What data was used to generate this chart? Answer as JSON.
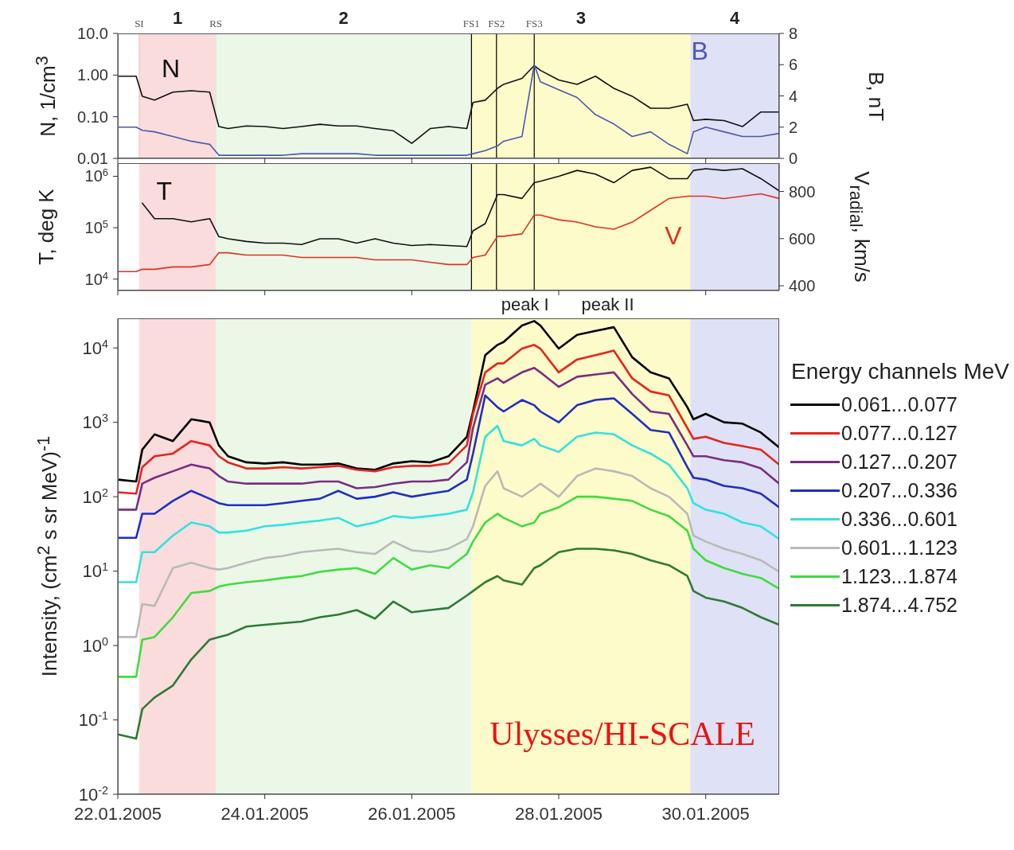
{
  "chart_data": [
    {
      "type": "line",
      "ylabel": "N, 1/cm$^{3}$",
      "y2label": "B, nT",
      "log": "y",
      "tick_labels": "y",
      "x": [
        "2005-01-22T00:00",
        "2005-01-22T06:00",
        "2005-01-22T08:00",
        "2005-01-22T12:00",
        "2005-01-22T18:00",
        "2005-01-23T00:00",
        "2005-01-23T06:00",
        "2005-01-23T09:00",
        "2005-01-23T12:00",
        "2005-01-23T18:00",
        "2005-01-24T00:00",
        "2005-01-24T06:00",
        "2005-01-24T12:00",
        "2005-01-24T18:00",
        "2005-01-25T00:00",
        "2005-01-25T06:00",
        "2005-01-25T12:00",
        "2005-01-25T18:00",
        "2005-01-26T00:00",
        "2005-01-26T06:00",
        "2005-01-26T12:00",
        "2005-01-26T18:00",
        "2005-01-26T20:00",
        "2005-01-27T00:00",
        "2005-01-27T04:00",
        "2005-01-27T06:00",
        "2005-01-27T12:00",
        "2005-01-27T16:00",
        "2005-01-27T18:00",
        "2005-01-28T00:00",
        "2005-01-28T06:00",
        "2005-01-28T12:00",
        "2005-01-28T18:00",
        "2005-01-29T00:00",
        "2005-01-29T06:00",
        "2005-01-29T12:00",
        "2005-01-29T18:00",
        "2005-01-29T20:00",
        "2005-01-30T00:00",
        "2005-01-30T06:00",
        "2005-01-30T12:00",
        "2005-01-30T18:00",
        "2005-01-31T00:00"
      ],
      "xlim": [
        "2005-01-22",
        "2005-01-31"
      ],
      "xticks": [
        {
          "value": "2005-01-22",
          "label": null
        },
        {
          "value": "2005-01-24",
          "label": null
        },
        {
          "value": "2005-01-26",
          "label": null
        },
        {
          "value": "2005-01-28",
          "label": null
        },
        {
          "value": "2005-01-30",
          "label": null
        }
      ],
      "ylim": [
        0.01,
        10
      ],
      "yticks": [
        {
          "value": 0.01,
          "label": "0.01"
        },
        {
          "value": 0.1,
          "label": "0.10"
        },
        {
          "value": 1,
          "label": "1.00"
        },
        {
          "value": 10,
          "label": "10.0"
        }
      ],
      "y2lim": [
        0,
        8
      ],
      "y2ticks": [
        0,
        2,
        4,
        6,
        8
      ],
      "bands": [
        {
          "axis": "x",
          "from": "2005-01-22T07:00",
          "to": "2005-01-23T08:00",
          "label": "1",
          "color": "#fadcdc"
        },
        {
          "axis": "x",
          "from": "2005-01-23T08:00",
          "to": "2005-01-26T19:30",
          "label": "2",
          "color": "#ebf8e8"
        },
        {
          "axis": "x",
          "from": "2005-01-26T19:30",
          "to": "2005-01-29T19:00",
          "label": "3",
          "color": "#fdfbca"
        },
        {
          "axis": "x",
          "from": "2005-01-29T19:00",
          "to": "2005-01-31T00:00",
          "label": "4",
          "color": "#dfe1f6"
        }
      ],
      "ref_lines": [
        {
          "axis": "x",
          "value": "2005-01-22T07:00",
          "label": "SI",
          "color": "#f2c4c4"
        },
        {
          "axis": "x",
          "value": "2005-01-23T08:00",
          "label": "RS",
          "color": "#d9e9d4"
        },
        {
          "axis": "x",
          "value": "2005-01-26T19:30",
          "label": "FS1",
          "color": "#000000"
        },
        {
          "axis": "x",
          "value": "2005-01-27T03:40",
          "label": "FS2",
          "color": "#000000"
        },
        {
          "axis": "x",
          "value": "2005-01-27T16:00",
          "label": "FS3",
          "color": "#000000"
        }
      ],
      "series": [
        {
          "name": "N",
          "color": "#111111",
          "values": [
            0.94,
            0.94,
            0.31,
            0.25,
            0.39,
            0.42,
            0.39,
            0.058,
            0.052,
            0.06,
            0.058,
            0.052,
            0.058,
            0.066,
            0.06,
            0.06,
            0.052,
            0.046,
            0.023,
            0.052,
            0.058,
            0.052,
            0.22,
            0.25,
            0.48,
            0.6,
            0.83,
            1.7,
            1.3,
            0.76,
            0.6,
            0.94,
            0.48,
            0.31,
            0.16,
            0.16,
            0.2,
            0.081,
            0.087,
            0.081,
            0.058,
            0.13,
            0.13
          ]
        },
        {
          "name": "B",
          "color": "#4b57b0",
          "axis": "y2",
          "values": [
            2.0,
            2.0,
            1.8,
            1.7,
            1.4,
            1.1,
            0.9,
            0.2,
            0.2,
            0.2,
            0.2,
            0.2,
            0.3,
            0.3,
            0.3,
            0.3,
            0.2,
            0.2,
            0.2,
            0.2,
            0.2,
            0.2,
            0.3,
            0.5,
            0.8,
            1.1,
            1.4,
            6.0,
            4.9,
            4.4,
            3.9,
            2.8,
            2.2,
            1.4,
            1.7,
            0.9,
            0.3,
            1.7,
            2.0,
            1.7,
            1.4,
            1.4,
            1.6
          ]
        }
      ]
    },
    {
      "type": "line",
      "ylabel": "T, deg K",
      "y2label": "V$_{radial}$, km/s",
      "log": "y",
      "tick_labels": "y",
      "x": [
        "2005-01-22T00:00",
        "2005-01-22T06:00",
        "2005-01-22T08:00",
        "2005-01-22T12:00",
        "2005-01-22T18:00",
        "2005-01-23T00:00",
        "2005-01-23T06:00",
        "2005-01-23T09:00",
        "2005-01-23T12:00",
        "2005-01-23T18:00",
        "2005-01-24T00:00",
        "2005-01-24T06:00",
        "2005-01-24T12:00",
        "2005-01-24T18:00",
        "2005-01-25T00:00",
        "2005-01-25T06:00",
        "2005-01-25T12:00",
        "2005-01-25T18:00",
        "2005-01-26T00:00",
        "2005-01-26T06:00",
        "2005-01-26T12:00",
        "2005-01-26T18:00",
        "2005-01-26T20:00",
        "2005-01-27T00:00",
        "2005-01-27T04:00",
        "2005-01-27T06:00",
        "2005-01-27T12:00",
        "2005-01-27T16:00",
        "2005-01-27T18:00",
        "2005-01-28T00:00",
        "2005-01-28T06:00",
        "2005-01-28T12:00",
        "2005-01-28T18:00",
        "2005-01-29T00:00",
        "2005-01-29T06:00",
        "2005-01-29T12:00",
        "2005-01-29T18:00",
        "2005-01-29T20:00",
        "2005-01-30T00:00",
        "2005-01-30T06:00",
        "2005-01-30T12:00",
        "2005-01-30T18:00",
        "2005-01-31T00:00"
      ],
      "xlim": [
        "2005-01-22",
        "2005-01-31"
      ],
      "xticks": [
        {
          "value": "2005-01-22",
          "label": null
        },
        {
          "value": "2005-01-24",
          "label": null
        },
        {
          "value": "2005-01-26",
          "label": null
        },
        {
          "value": "2005-01-28",
          "label": null
        },
        {
          "value": "2005-01-30",
          "label": null
        }
      ],
      "ylim": [
        6000,
        1800000
      ],
      "yticks": [
        {
          "value": 10000,
          "label": "10$^{4}$"
        },
        {
          "value": 100000,
          "label": "10$^{5}$"
        },
        {
          "value": 1000000,
          "label": "10$^{6}$"
        }
      ],
      "y2lim": [
        380,
        920
      ],
      "y2ticks": [
        400,
        600,
        800
      ],
      "bands": [
        {
          "axis": "x",
          "from": "2005-01-22T07:00",
          "to": "2005-01-23T08:00",
          "color": "#fadcdc"
        },
        {
          "axis": "x",
          "from": "2005-01-23T08:00",
          "to": "2005-01-26T19:30",
          "color": "#ebf8e8"
        },
        {
          "axis": "x",
          "from": "2005-01-26T19:30",
          "to": "2005-01-29T19:00",
          "color": "#fdfbca"
        },
        {
          "axis": "x",
          "from": "2005-01-29T19:00",
          "to": "2005-01-31T00:00",
          "color": "#dfe1f6"
        }
      ],
      "ref_lines": [
        {
          "axis": "x",
          "value": "2005-01-26T19:30",
          "color": "#000000"
        },
        {
          "axis": "x",
          "value": "2005-01-27T03:40",
          "color": "#000000"
        },
        {
          "axis": "x",
          "value": "2005-01-27T16:00",
          "color": "#000000"
        }
      ],
      "series": [
        {
          "name": "T",
          "color": "#111111",
          "values": [
            null,
            null,
            300000,
            150000,
            150000,
            130000,
            150000,
            67000,
            61000,
            54000,
            50000,
            50000,
            47000,
            61000,
            61000,
            50000,
            61000,
            50000,
            45000,
            47000,
            45000,
            43000,
            87000,
            120000,
            440000,
            440000,
            370000,
            750000,
            800000,
            1000000,
            1300000,
            1100000,
            750000,
            1300000,
            1500000,
            900000,
            900000,
            1300000,
            1400000,
            1300000,
            1400000,
            900000,
            520000
          ]
        },
        {
          "name": "V",
          "color": "#e0321f",
          "axis": "y2",
          "values": [
            460,
            460,
            470,
            470,
            480,
            480,
            490,
            540,
            540,
            530,
            530,
            530,
            520,
            520,
            520,
            520,
            510,
            510,
            510,
            500,
            490,
            490,
            520,
            530,
            610,
            610,
            620,
            700,
            700,
            680,
            670,
            650,
            640,
            670,
            720,
            770,
            780,
            780,
            780,
            770,
            780,
            790,
            770
          ]
        }
      ]
    },
    {
      "type": "line",
      "ylabel": "Intensity, (cm$^{2}$ s sr MeV)$^{-1}$",
      "log": "y",
      "legend": "right",
      "legend_title": "Energy channels MeV",
      "x": [
        "2005-01-22T00:00",
        "2005-01-22T06:00",
        "2005-01-22T08:00",
        "2005-01-22T12:00",
        "2005-01-22T18:00",
        "2005-01-23T00:00",
        "2005-01-23T06:00",
        "2005-01-23T09:00",
        "2005-01-23T12:00",
        "2005-01-23T18:00",
        "2005-01-24T00:00",
        "2005-01-24T06:00",
        "2005-01-24T12:00",
        "2005-01-24T18:00",
        "2005-01-25T00:00",
        "2005-01-25T06:00",
        "2005-01-25T12:00",
        "2005-01-25T18:00",
        "2005-01-26T00:00",
        "2005-01-26T06:00",
        "2005-01-26T12:00",
        "2005-01-26T18:00",
        "2005-01-26T20:00",
        "2005-01-27T00:00",
        "2005-01-27T04:00",
        "2005-01-27T06:00",
        "2005-01-27T12:00",
        "2005-01-27T16:00",
        "2005-01-27T18:00",
        "2005-01-28T00:00",
        "2005-01-28T06:00",
        "2005-01-28T12:00",
        "2005-01-28T18:00",
        "2005-01-29T00:00",
        "2005-01-29T06:00",
        "2005-01-29T12:00",
        "2005-01-29T18:00",
        "2005-01-29T20:00",
        "2005-01-30T00:00",
        "2005-01-30T06:00",
        "2005-01-30T12:00",
        "2005-01-30T18:00",
        "2005-01-31T00:00"
      ],
      "xlim": [
        "2005-01-22",
        "2005-01-31"
      ],
      "xticks": [
        {
          "value": "2005-01-22",
          "label": "22.01.2005"
        },
        {
          "value": "2005-01-24",
          "label": "24.01.2005"
        },
        {
          "value": "2005-01-26",
          "label": "26.01.2005"
        },
        {
          "value": "2005-01-28",
          "label": "28.01.2005"
        },
        {
          "value": "2005-01-30",
          "label": "30.01.2005"
        }
      ],
      "ylim": [
        0.01,
        25000
      ],
      "yticks": [
        {
          "value": 0.01,
          "label": "10$^{-2}$"
        },
        {
          "value": 0.1,
          "label": "10$^{-1}$"
        },
        {
          "value": 1,
          "label": "10$^{0}$"
        },
        {
          "value": 10,
          "label": "10$^{1}$"
        },
        {
          "value": 100,
          "label": "10$^{2}$"
        },
        {
          "value": 1000,
          "label": "10$^{3}$"
        },
        {
          "value": 10000,
          "label": "10$^{4}$"
        }
      ],
      "bands": [
        {
          "axis": "x",
          "from": "2005-01-22T07:00",
          "to": "2005-01-23T08:00",
          "color": "#fadcdc"
        },
        {
          "axis": "x",
          "from": "2005-01-23T08:00",
          "to": "2005-01-26T19:30",
          "color": "#ebf8e8"
        },
        {
          "axis": "x",
          "from": "2005-01-26T19:30",
          "to": "2005-01-29T19:00",
          "color": "#fdfbca"
        },
        {
          "axis": "x",
          "from": "2005-01-29T19:00",
          "to": "2005-01-31T00:00",
          "color": "#dfe1f6"
        }
      ],
      "annotations": [
        {
          "text": "peak I",
          "x": "2005-01-27T13:00",
          "y": 25000
        },
        {
          "text": "peak II",
          "x": "2005-01-28T16:00",
          "y": 25000
        },
        "Ulysses/HI-SCALE"
      ],
      "series": [
        {
          "name": "0.061...0.077",
          "color": "#000000",
          "values": [
            170,
            160,
            430,
            690,
            560,
            1100,
            1000,
            490,
            350,
            290,
            280,
            290,
            270,
            270,
            280,
            240,
            230,
            280,
            300,
            290,
            350,
            640,
            1400,
            8000,
            11000,
            12000,
            20000,
            23000,
            20000,
            9800,
            15000,
            17000,
            19000,
            7500,
            4700,
            3900,
            1600,
            1100,
            1300,
            1000,
            960,
            730,
            460
          ]
        },
        {
          "name": "0.077...0.127",
          "color": "#e8231e",
          "values": [
            115,
            110,
            250,
            350,
            380,
            560,
            490,
            350,
            290,
            240,
            240,
            250,
            240,
            250,
            260,
            230,
            220,
            250,
            260,
            260,
            280,
            490,
            1300,
            4700,
            6200,
            6200,
            9800,
            11000,
            9800,
            4700,
            7000,
            8000,
            9200,
            3900,
            2600,
            2300,
            840,
            600,
            640,
            530,
            480,
            430,
            270
          ]
        },
        {
          "name": "0.127...0.207",
          "color": "#7b2d82",
          "values": [
            67,
            67,
            150,
            180,
            220,
            270,
            240,
            190,
            160,
            150,
            150,
            150,
            150,
            160,
            160,
            130,
            135,
            150,
            160,
            160,
            170,
            290,
            840,
            3200,
            3900,
            3400,
            4700,
            5400,
            4700,
            3000,
            4100,
            4400,
            4700,
            2400,
            1400,
            1300,
            490,
            350,
            350,
            310,
            290,
            240,
            150
          ]
        },
        {
          "name": "0.207...0.336",
          "color": "#1f2fc0",
          "values": [
            28,
            28,
            59,
            59,
            88,
            120,
            94,
            82,
            77,
            77,
            77,
            82,
            88,
            94,
            120,
            94,
            100,
            115,
            100,
            110,
            120,
            170,
            380,
            2300,
            1600,
            1400,
            2000,
            1700,
            1400,
            1000,
            1700,
            2000,
            2100,
            1300,
            790,
            730,
            250,
            180,
            170,
            140,
            130,
            110,
            72
          ]
        },
        {
          "name": "0.336...0.601",
          "color": "#2fe3e0",
          "values": [
            7.1,
            7.1,
            18,
            18,
            30,
            45,
            40,
            33,
            33,
            35,
            40,
            42,
            45,
            48,
            52,
            40,
            45,
            55,
            52,
            55,
            59,
            67,
            115,
            640,
            900,
            560,
            490,
            600,
            490,
            400,
            640,
            730,
            690,
            490,
            380,
            270,
            130,
            82,
            67,
            59,
            45,
            40,
            27
          ]
        },
        {
          "name": "0.601...1.123",
          "color": "#b9b9b9",
          "values": [
            1.3,
            1.3,
            3.6,
            3.4,
            11,
            13,
            11,
            10.5,
            11,
            13,
            15,
            16,
            18,
            19,
            20,
            18,
            17,
            25,
            19,
            18,
            20,
            27,
            40,
            140,
            220,
            130,
            100,
            130,
            150,
            100,
            190,
            240,
            220,
            190,
            130,
            100,
            59,
            30,
            25,
            20,
            17,
            14,
            9.8
          ]
        },
        {
          "name": "1.123...1.874",
          "color": "#3fdc3f",
          "values": [
            0.38,
            0.38,
            1.2,
            1.3,
            2.4,
            5.1,
            5.4,
            6.2,
            6.6,
            7.1,
            7.5,
            8.1,
            8.6,
            9.8,
            10.5,
            11,
            9.2,
            15,
            10.5,
            12,
            11,
            17,
            25,
            45,
            59,
            52,
            40,
            45,
            59,
            72,
            100,
            100,
            94,
            88,
            67,
            55,
            35,
            20,
            14,
            11,
            9.2,
            8.1,
            5.8
          ]
        },
        {
          "name": "1.874...4.752",
          "color": "#2e7a35",
          "values": [
            0.064,
            0.056,
            0.14,
            0.2,
            0.29,
            0.65,
            1.2,
            1.3,
            1.4,
            1.8,
            1.9,
            2.0,
            2.1,
            2.4,
            2.6,
            3.0,
            2.3,
            3.9,
            2.8,
            3.0,
            3.2,
            4.7,
            5.4,
            7.1,
            8.6,
            7.5,
            6.6,
            11,
            12,
            18,
            20,
            20,
            19,
            17,
            14,
            12,
            8.6,
            5.4,
            4.4,
            3.9,
            3.2,
            2.4,
            1.9
          ]
        }
      ]
    }
  ]
}
